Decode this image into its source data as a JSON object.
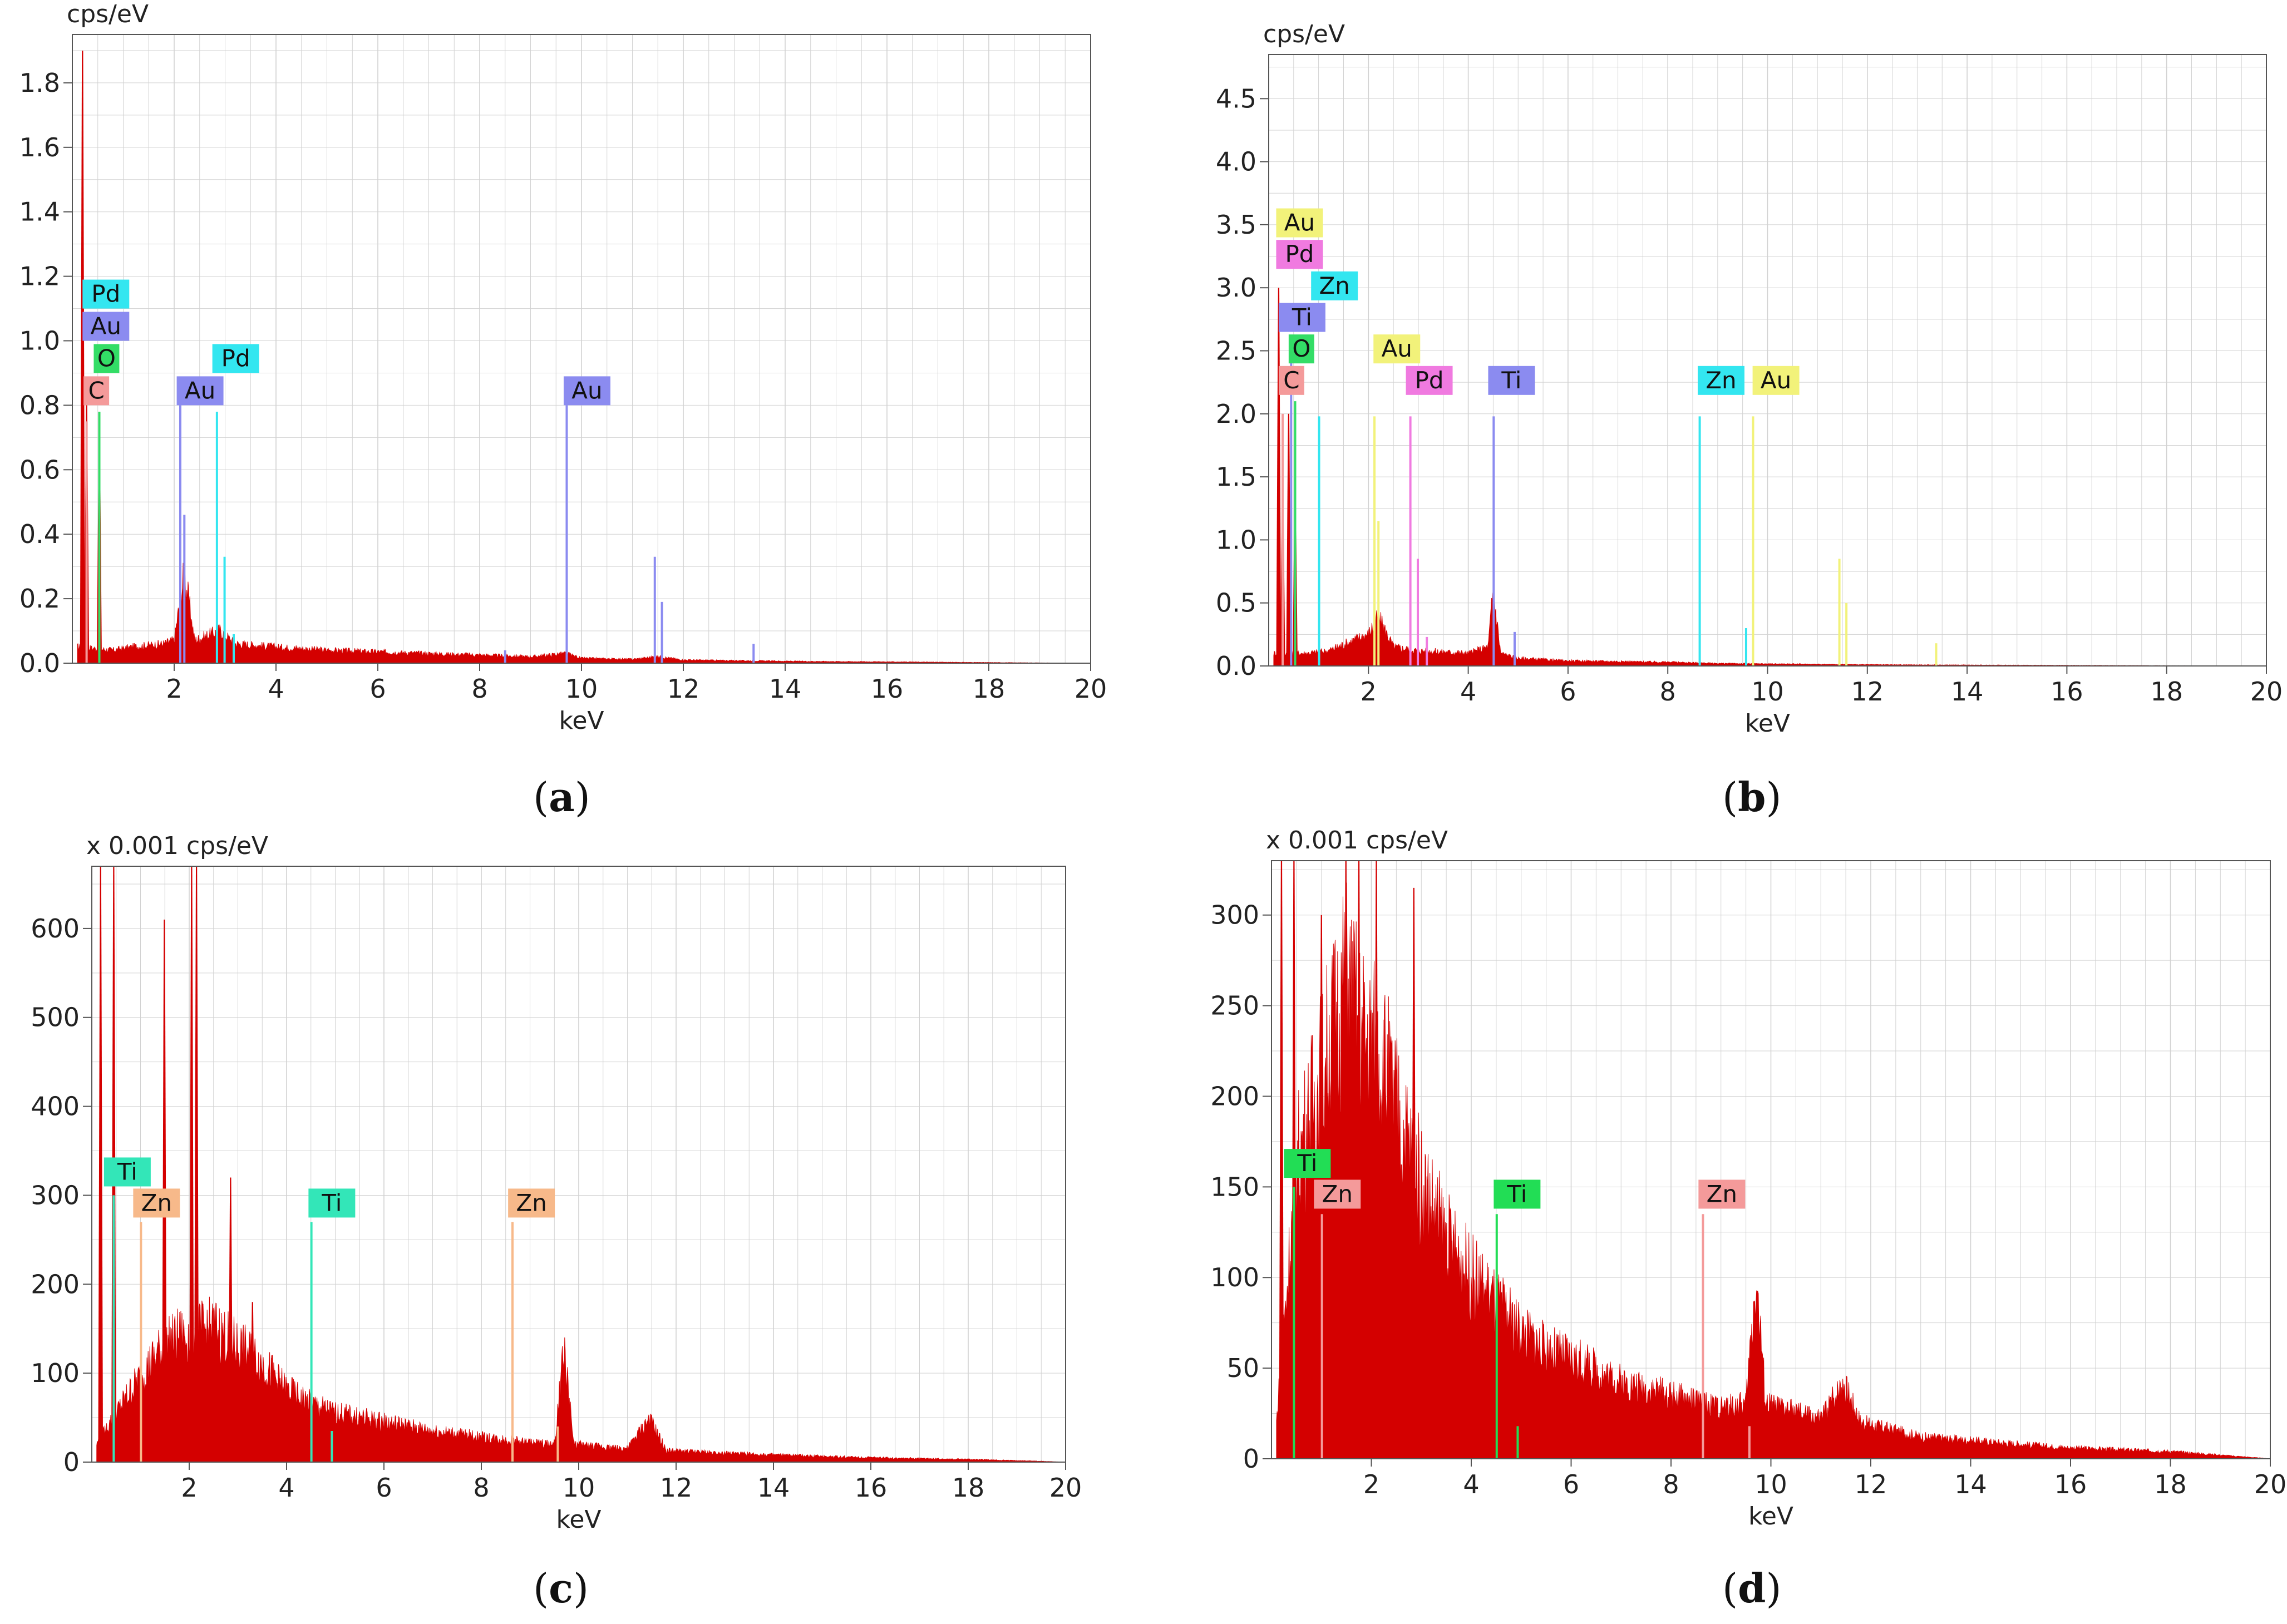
{
  "colors": {
    "spectrum": "#d40000",
    "grid": "#d2d2d2",
    "axis": "#555555",
    "element": {
      "C": "#f49a9a",
      "O": "#33dd66",
      "Pd": "#33e6f0",
      "Au": "#8b8bf0",
      "Ti": "#8b8bf0",
      "Zn": "#33e6f0"
    }
  },
  "chart_data": [
    {
      "id": "a",
      "type": "line",
      "caption": "a",
      "unit_label": "cps/eV",
      "xlabel": "keV",
      "ylabel": "cps/eV",
      "xlim": [
        0,
        20
      ],
      "ylim": [
        0,
        1.95
      ],
      "x_ticks": [
        2,
        4,
        6,
        8,
        10,
        12,
        14,
        16,
        18,
        20
      ],
      "y_ticks": [
        0.0,
        0.2,
        0.4,
        0.6,
        0.8,
        1.0,
        1.2,
        1.4,
        1.6,
        1.8
      ],
      "y_tick_labels": [
        "0.0",
        "0.2",
        "0.4",
        "0.6",
        "0.8",
        "1.0",
        "1.2",
        "1.4",
        "1.6",
        "1.8"
      ],
      "background": [
        [
          0.1,
          0.05
        ],
        [
          0.8,
          0.04
        ],
        [
          1.2,
          0.05
        ],
        [
          1.8,
          0.06
        ],
        [
          2.0,
          0.07
        ],
        [
          2.2,
          0.28
        ],
        [
          2.4,
          0.07
        ],
        [
          2.9,
          0.1
        ],
        [
          3.2,
          0.06
        ],
        [
          4.0,
          0.05
        ],
        [
          5.0,
          0.04
        ],
        [
          6.0,
          0.035
        ],
        [
          7.0,
          0.03
        ],
        [
          8.0,
          0.025
        ],
        [
          9.0,
          0.02
        ],
        [
          9.7,
          0.03
        ],
        [
          10.0,
          0.015
        ],
        [
          11.0,
          0.012
        ],
        [
          11.5,
          0.02
        ],
        [
          12.0,
          0.01
        ],
        [
          14.0,
          0.006
        ],
        [
          16.0,
          0.004
        ],
        [
          20.0,
          0.0
        ]
      ],
      "spectrum_peaks": [
        [
          0.2,
          1.9
        ],
        [
          0.28,
          0.8
        ],
        [
          0.53,
          0.72
        ]
      ],
      "element_lines": [
        {
          "x": 0.28,
          "y": 0.75,
          "el": "C"
        },
        {
          "x": 0.53,
          "y": 0.78,
          "el": "O"
        },
        {
          "x": 2.12,
          "y": 0.8,
          "el": "Au"
        },
        {
          "x": 2.2,
          "y": 0.46,
          "el": "Au"
        },
        {
          "x": 2.84,
          "y": 0.78,
          "el": "Pd"
        },
        {
          "x": 2.99,
          "y": 0.33,
          "el": "Pd"
        },
        {
          "x": 3.17,
          "y": 0.09,
          "el": "Pd"
        },
        {
          "x": 8.5,
          "y": 0.04,
          "el": "Au"
        },
        {
          "x": 9.71,
          "y": 0.8,
          "el": "Au"
        },
        {
          "x": 11.44,
          "y": 0.33,
          "el": "Au"
        },
        {
          "x": 11.58,
          "y": 0.19,
          "el": "Au"
        },
        {
          "x": 13.38,
          "y": 0.06,
          "el": "Au"
        }
      ],
      "labels": [
        {
          "text": "Pd",
          "x": 0.2,
          "y": 1.1,
          "el": "Pd"
        },
        {
          "text": "Au",
          "x": 0.2,
          "y": 1.0,
          "el": "Au"
        },
        {
          "text": "O",
          "x": 0.42,
          "y": 0.9,
          "el": "O"
        },
        {
          "text": "C",
          "x": 0.22,
          "y": 0.8,
          "el": "C"
        },
        {
          "text": "Au",
          "x": 2.05,
          "y": 0.8,
          "el": "Au"
        },
        {
          "text": "Pd",
          "x": 2.75,
          "y": 0.9,
          "el": "Pd"
        },
        {
          "text": "Au",
          "x": 9.65,
          "y": 0.8,
          "el": "Au"
        }
      ]
    },
    {
      "id": "b",
      "type": "line",
      "caption": "b",
      "unit_label": "cps/eV",
      "xlabel": "keV",
      "ylabel": "cps/eV",
      "xlim": [
        0,
        20
      ],
      "ylim": [
        0,
        4.85
      ],
      "x_ticks": [
        2,
        4,
        6,
        8,
        10,
        12,
        14,
        16,
        18,
        20
      ],
      "y_ticks": [
        0.0,
        0.5,
        1.0,
        1.5,
        2.0,
        2.5,
        3.0,
        3.5,
        4.0,
        4.5
      ],
      "y_tick_labels": [
        "0.0",
        "0.5",
        "1.0",
        "1.5",
        "2.0",
        "2.5",
        "3.0",
        "3.5",
        "4.0",
        "4.5"
      ],
      "background": [
        [
          0.1,
          0.1
        ],
        [
          0.8,
          0.1
        ],
        [
          1.2,
          0.12
        ],
        [
          2.0,
          0.25
        ],
        [
          2.2,
          0.38
        ],
        [
          2.5,
          0.15
        ],
        [
          3.0,
          0.12
        ],
        [
          4.0,
          0.1
        ],
        [
          4.4,
          0.15
        ],
        [
          4.5,
          0.6
        ],
        [
          4.65,
          0.1
        ],
        [
          5.0,
          0.06
        ],
        [
          6.0,
          0.04
        ],
        [
          8.0,
          0.03
        ],
        [
          9.0,
          0.02
        ],
        [
          12.0,
          0.01
        ],
        [
          20.0,
          0.0
        ]
      ],
      "spectrum_peaks": [
        [
          0.2,
          3.0
        ],
        [
          0.28,
          1.5
        ],
        [
          0.4,
          2.0
        ],
        [
          0.53,
          1.45
        ]
      ],
      "element_lines": [
        {
          "x": 0.28,
          "y": 2.0,
          "el": "C"
        },
        {
          "x": 0.45,
          "y": 2.6,
          "el": "Ti"
        },
        {
          "x": 0.53,
          "y": 2.1,
          "el": "O"
        },
        {
          "x": 1.01,
          "y": 1.98,
          "el": "Zn"
        },
        {
          "x": 2.12,
          "y": 1.98,
          "el": "Au"
        },
        {
          "x": 2.2,
          "y": 1.15,
          "el": "Au"
        },
        {
          "x": 2.84,
          "y": 1.98,
          "el": "Pd"
        },
        {
          "x": 2.99,
          "y": 0.85,
          "el": "Pd"
        },
        {
          "x": 3.17,
          "y": 0.23,
          "el": "Pd"
        },
        {
          "x": 4.51,
          "y": 1.98,
          "el": "Ti"
        },
        {
          "x": 4.93,
          "y": 0.27,
          "el": "Ti"
        },
        {
          "x": 8.64,
          "y": 1.98,
          "el": "Zn"
        },
        {
          "x": 9.57,
          "y": 0.3,
          "el": "Zn"
        },
        {
          "x": 9.71,
          "y": 1.98,
          "el": "Au"
        },
        {
          "x": 11.44,
          "y": 0.85,
          "el": "Au"
        },
        {
          "x": 11.58,
          "y": 0.5,
          "el": "Au"
        },
        {
          "x": 13.38,
          "y": 0.18,
          "el": "Au"
        }
      ],
      "labels": [
        {
          "text": "Au",
          "x": 0.15,
          "y": 3.4,
          "el": "Au"
        },
        {
          "text": "Pd",
          "x": 0.15,
          "y": 3.15,
          "el": "Pd"
        },
        {
          "text": "Zn",
          "x": 0.85,
          "y": 2.9,
          "el": "Zn"
        },
        {
          "text": "Ti",
          "x": 0.2,
          "y": 2.65,
          "el": "Ti"
        },
        {
          "text": "O",
          "x": 0.4,
          "y": 2.4,
          "el": "O"
        },
        {
          "text": "C",
          "x": 0.2,
          "y": 2.15,
          "el": "C"
        },
        {
          "text": "Au",
          "x": 2.1,
          "y": 2.4,
          "el": "Au"
        },
        {
          "text": "Pd",
          "x": 2.75,
          "y": 2.15,
          "el": "Pd"
        },
        {
          "text": "Ti",
          "x": 4.4,
          "y": 2.15,
          "el": "Ti"
        },
        {
          "text": "Zn",
          "x": 8.6,
          "y": 2.15,
          "el": "Zn"
        },
        {
          "text": "Au",
          "x": 9.7,
          "y": 2.15,
          "el": "Au"
        }
      ]
    },
    {
      "id": "c",
      "type": "line",
      "caption": "c",
      "unit_label": "x 0.001 cps/eV",
      "xlabel": "keV",
      "ylabel": "x 0.001 cps/eV",
      "xlim": [
        0,
        20
      ],
      "ylim": [
        0,
        670
      ],
      "x_ticks": [
        2,
        4,
        6,
        8,
        10,
        12,
        14,
        16,
        18,
        20
      ],
      "y_ticks": [
        0,
        100,
        200,
        300,
        400,
        500,
        600
      ],
      "y_tick_labels": [
        "0",
        "100",
        "200",
        "300",
        "400",
        "500",
        "600"
      ],
      "background": [
        [
          0.1,
          20
        ],
        [
          0.8,
          80
        ],
        [
          1.2,
          110
        ],
        [
          1.5,
          130
        ],
        [
          1.8,
          140
        ],
        [
          2.5,
          150
        ],
        [
          3.0,
          130
        ],
        [
          3.5,
          110
        ],
        [
          4.0,
          80
        ],
        [
          4.5,
          65
        ],
        [
          5.0,
          55
        ],
        [
          6.0,
          45
        ],
        [
          7.0,
          35
        ],
        [
          8.0,
          28
        ],
        [
          9.0,
          22
        ],
        [
          9.5,
          20
        ],
        [
          9.7,
          125
        ],
        [
          9.9,
          20
        ],
        [
          11.0,
          15
        ],
        [
          11.45,
          48
        ],
        [
          11.8,
          13
        ],
        [
          13.0,
          10
        ],
        [
          14.0,
          8
        ],
        [
          16.0,
          5
        ],
        [
          18.0,
          3
        ],
        [
          19.5,
          1
        ],
        [
          20.0,
          0
        ]
      ],
      "spectrum_peaks": [
        [
          0.18,
          670
        ],
        [
          0.45,
          670
        ],
        [
          1.49,
          610
        ],
        [
          2.05,
          670
        ],
        [
          2.15,
          670
        ],
        [
          2.85,
          320
        ],
        [
          3.3,
          180
        ],
        [
          3.7,
          120
        ]
      ],
      "element_lines": [
        {
          "x": 0.45,
          "y": 300,
          "el": "Ti"
        },
        {
          "x": 1.01,
          "y": 270,
          "el": "Zn"
        },
        {
          "x": 4.51,
          "y": 270,
          "el": "Ti"
        },
        {
          "x": 4.93,
          "y": 35,
          "el": "Ti"
        },
        {
          "x": 8.64,
          "y": 270,
          "el": "Zn"
        },
        {
          "x": 9.57,
          "y": 40,
          "el": "Zn"
        }
      ],
      "labels": [
        {
          "text": "Ti",
          "x": 0.25,
          "y": 310,
          "el": "Ti"
        },
        {
          "text": "Zn",
          "x": 0.85,
          "y": 275,
          "el": "Zn"
        },
        {
          "text": "Ti",
          "x": 4.45,
          "y": 275,
          "el": "Ti"
        },
        {
          "text": "Zn",
          "x": 8.55,
          "y": 275,
          "el": "Zn"
        }
      ]
    },
    {
      "id": "d",
      "type": "line",
      "caption": "d",
      "unit_label": "x 0.001 cps/eV",
      "xlabel": "keV",
      "ylabel": "x 0.001 cps/eV",
      "xlim": [
        0,
        20
      ],
      "ylim": [
        0,
        330
      ],
      "x_ticks": [
        2,
        4,
        6,
        8,
        10,
        12,
        14,
        16,
        18,
        20
      ],
      "y_ticks": [
        0,
        50,
        100,
        150,
        200,
        250,
        300
      ],
      "y_tick_labels": [
        "0",
        "50",
        "100",
        "150",
        "200",
        "250",
        "300"
      ],
      "background": [
        [
          0.1,
          20
        ],
        [
          0.5,
          160
        ],
        [
          0.8,
          190
        ],
        [
          1.2,
          230
        ],
        [
          1.5,
          260
        ],
        [
          1.8,
          230
        ],
        [
          2.2,
          220
        ],
        [
          2.6,
          180
        ],
        [
          3.0,
          150
        ],
        [
          3.5,
          120
        ],
        [
          4.0,
          100
        ],
        [
          4.5,
          85
        ],
        [
          5.0,
          70
        ],
        [
          5.5,
          60
        ],
        [
          6.0,
          55
        ],
        [
          7.0,
          42
        ],
        [
          8.0,
          35
        ],
        [
          9.0,
          28
        ],
        [
          9.5,
          30
        ],
        [
          9.7,
          100
        ],
        [
          9.9,
          30
        ],
        [
          11.0,
          22
        ],
        [
          11.45,
          42
        ],
        [
          11.8,
          20
        ],
        [
          13.0,
          12
        ],
        [
          14.0,
          10
        ],
        [
          16.0,
          6
        ],
        [
          18.0,
          4
        ],
        [
          20.0,
          0
        ]
      ],
      "spectrum_peaks": [
        [
          0.2,
          330
        ],
        [
          0.45,
          330
        ],
        [
          1.0,
          300
        ],
        [
          1.49,
          330
        ],
        [
          1.75,
          330
        ],
        [
          2.1,
          330
        ],
        [
          2.85,
          315
        ]
      ],
      "element_lines": [
        {
          "x": 0.45,
          "y": 150,
          "el": "Ti"
        },
        {
          "x": 1.01,
          "y": 135,
          "el": "Zn"
        },
        {
          "x": 4.51,
          "y": 135,
          "el": "Ti"
        },
        {
          "x": 4.93,
          "y": 18,
          "el": "Ti"
        },
        {
          "x": 8.64,
          "y": 135,
          "el": "Zn"
        },
        {
          "x": 9.57,
          "y": 18,
          "el": "Zn"
        }
      ],
      "labels": [
        {
          "text": "Ti",
          "x": 0.25,
          "y": 155,
          "el": "Ti"
        },
        {
          "text": "Zn",
          "x": 0.85,
          "y": 138,
          "el": "Zn"
        },
        {
          "text": "Ti",
          "x": 4.45,
          "y": 138,
          "el": "Ti"
        },
        {
          "text": "Zn",
          "x": 8.55,
          "y": 138,
          "el": "Zn"
        }
      ]
    }
  ],
  "panel_c_colors": {
    "Ti": "#33e6b8",
    "Zn": "#f7b98a"
  },
  "panel_d_colors": {
    "Ti": "#22dd55",
    "Zn": "#f49a9a"
  },
  "panel_b_colors": {
    "Au": "#f2f27a",
    "Pd": "#f07ae0",
    "Zn": "#33e6f0",
    "Ti": "#8b8bf0",
    "O": "#33dd66",
    "C": "#f49a9a"
  }
}
